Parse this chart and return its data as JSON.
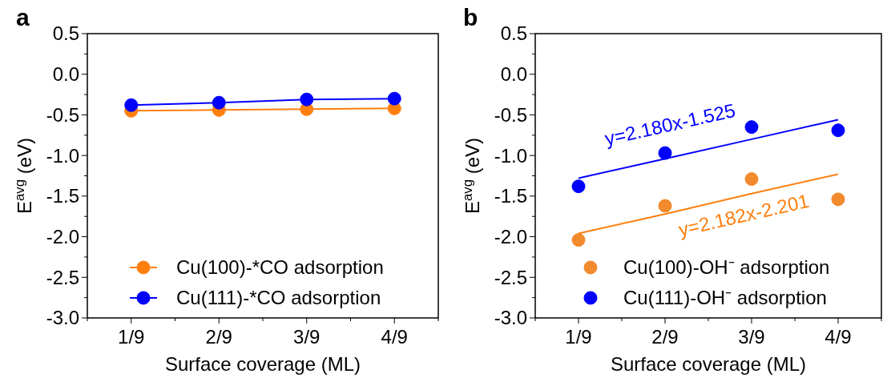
{
  "chart_data": [
    {
      "type": "line",
      "title": "a",
      "xlabel": "Surface coverage (ML)",
      "ylabel": "E$^{avg}$ (eV)",
      "categories": [
        "1/9",
        "2/9",
        "3/9",
        "4/9"
      ],
      "ylim": [
        -3.0,
        0.5
      ],
      "yticks": [
        {
          "value": -3.0,
          "label": "-3.0"
        },
        {
          "value": -2.75,
          "label": null
        },
        {
          "value": -2.5,
          "label": "-2.5"
        },
        {
          "value": -2.25,
          "label": null
        },
        {
          "value": -2.0,
          "label": "-2.0"
        },
        {
          "value": -1.75,
          "label": null
        },
        {
          "value": -1.5,
          "label": "-1.5"
        },
        {
          "value": -1.25,
          "label": null
        },
        {
          "value": -1.0,
          "label": "-1.0"
        },
        {
          "value": -0.75,
          "label": null
        },
        {
          "value": -0.5,
          "label": "-0.5"
        },
        {
          "value": -0.25,
          "label": null
        },
        {
          "value": 0.0,
          "label": "0.0"
        },
        {
          "value": 0.25,
          "label": null
        },
        {
          "value": 0.5,
          "label": "0.5"
        }
      ],
      "marker": "circle",
      "legend": "bottom right",
      "series": [
        {
          "name": "Cu(100)-*CO adsorption",
          "color": "#ff7f0e",
          "values": [
            -0.45,
            -0.44,
            -0.43,
            -0.42
          ]
        },
        {
          "name": "Cu(111)-*CO adsorption",
          "color": "#0000ff",
          "values": [
            -0.38,
            -0.35,
            -0.31,
            -0.3
          ]
        }
      ]
    },
    {
      "type": "scatter",
      "title": "b",
      "xlabel": "Surface coverage (ML)",
      "ylabel": "E$^{avg}$ (eV)",
      "categories": [
        "1/9",
        "2/9",
        "3/9",
        "4/9"
      ],
      "ylim": [
        -3.0,
        0.5
      ],
      "yticks": [
        {
          "value": -3.0,
          "label": "-3.0"
        },
        {
          "value": -2.75,
          "label": null
        },
        {
          "value": -2.5,
          "label": "-2.5"
        },
        {
          "value": -2.25,
          "label": null
        },
        {
          "value": -2.0,
          "label": "-2.0"
        },
        {
          "value": -1.75,
          "label": null
        },
        {
          "value": -1.5,
          "label": "-1.5"
        },
        {
          "value": -1.25,
          "label": null
        },
        {
          "value": -1.0,
          "label": "-1.0"
        },
        {
          "value": -0.75,
          "label": null
        },
        {
          "value": -0.5,
          "label": "-0.5"
        },
        {
          "value": -0.25,
          "label": null
        },
        {
          "value": 0.0,
          "label": "0.0"
        },
        {
          "value": 0.25,
          "label": null
        },
        {
          "value": 0.5,
          "label": "0.5"
        }
      ],
      "marker": "circle",
      "legend": "bottom right",
      "annotations": [
        "y=2.180x-1.525",
        "y=2.182x-2.201"
      ],
      "series": [
        {
          "name": "Cu(100)-OH⁻ adsorption",
          "color": "#f28a2e",
          "values": [
            -2.04,
            -1.62,
            -1.29,
            -1.54
          ]
        },
        {
          "name": "Cu(111)-OH⁻ adsorption",
          "color": "#0000ff",
          "values": [
            -1.38,
            -0.97,
            -0.65,
            -0.69
          ]
        },
        {
          "type": "line",
          "color": "#0000ff",
          "values": [
            -1.28,
            -1.04,
            -0.8,
            -0.56
          ],
          "marker": "none"
        },
        {
          "type": "line",
          "color": "#ff7f0e",
          "values": [
            -1.96,
            -1.72,
            -1.47,
            -1.23
          ],
          "marker": "none"
        }
      ]
    }
  ]
}
